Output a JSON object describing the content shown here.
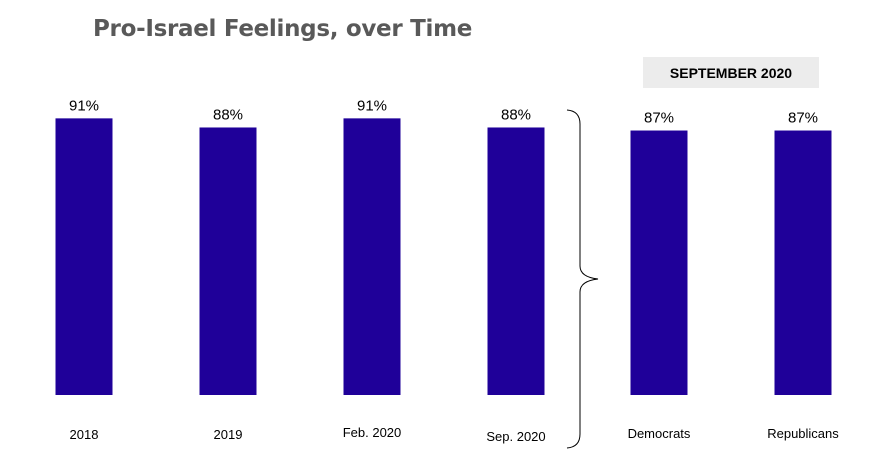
{
  "chart_data": {
    "type": "bar",
    "title": "Pro-Israel Feelings, over Time",
    "categories": [
      "2018",
      "2019",
      "Feb. 2020",
      "Sep. 2020",
      "Democrats",
      "Republicans"
    ],
    "values": [
      91,
      88,
      91,
      88,
      87,
      87
    ],
    "value_labels": [
      "91%",
      "88%",
      "91%",
      "88%",
      "87%",
      "87%"
    ],
    "group_label": "SEPTEMBER 2020",
    "xlabel": "",
    "ylabel": "",
    "ylim": [
      0,
      100
    ],
    "grid": false,
    "legend": "none",
    "bar_color": "#1f0099"
  }
}
